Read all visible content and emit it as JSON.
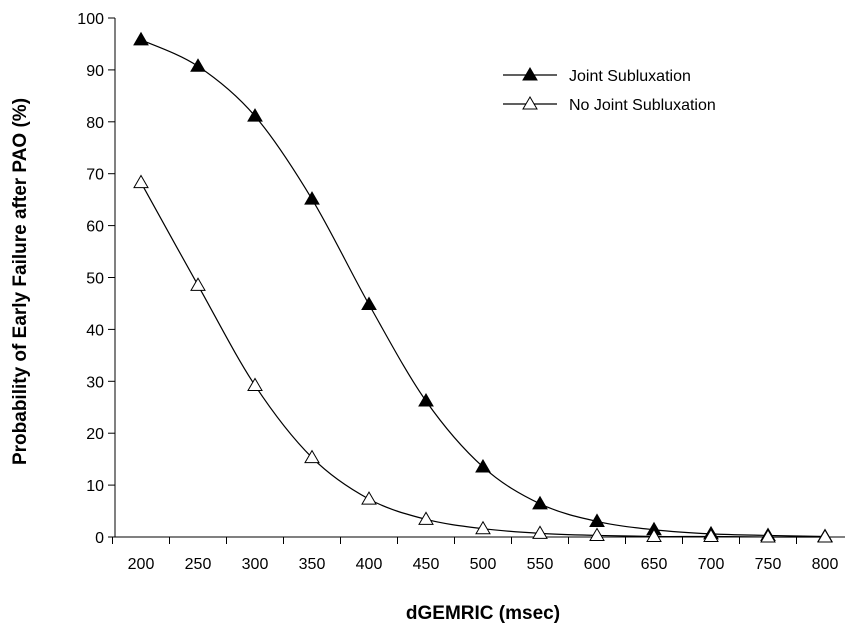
{
  "chart_data": {
    "type": "line",
    "title": "",
    "xlabel": "dGEMRIC (msec)",
    "ylabel": "Probability of Early Failure after PAO (%)",
    "x": [
      200,
      250,
      300,
      350,
      400,
      450,
      500,
      550,
      600,
      650,
      700,
      750,
      800
    ],
    "xlim": [
      200,
      800
    ],
    "ylim": [
      0,
      100
    ],
    "yticks": [
      0,
      10,
      20,
      30,
      40,
      50,
      60,
      70,
      80,
      90,
      100
    ],
    "grid": false,
    "legend_position": "top-right",
    "series": [
      {
        "name": "Joint Subluxation",
        "marker": "filled-triangle",
        "color": "#000000",
        "values": [
          95.8,
          90.7,
          81.1,
          65.1,
          44.8,
          26.2,
          13.5,
          6.4,
          3.0,
          1.4,
          0.6,
          0.3,
          0.1
        ]
      },
      {
        "name": "No Joint Subluxation",
        "marker": "open-triangle",
        "color": "#000000",
        "values": [
          68.3,
          48.5,
          29.2,
          15.3,
          7.3,
          3.4,
          1.6,
          0.7,
          0.3,
          0.1,
          0.1,
          0.0,
          0.0
        ]
      }
    ]
  }
}
